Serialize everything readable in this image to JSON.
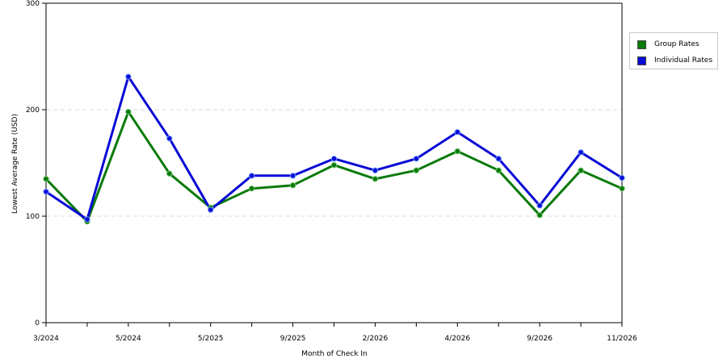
{
  "chart_data": {
    "type": "line",
    "xlabel": "Month of Check In",
    "ylabel": "Lowest Average Rate (USD)",
    "ylim": [
      0,
      300
    ],
    "yticks": [
      0,
      100,
      200,
      300
    ],
    "categories": [
      "3/2024",
      "",
      "5/2024",
      "",
      "5/2025",
      "",
      "9/2025",
      "",
      "2/2026",
      "",
      "4/2026",
      "",
      "9/2026",
      "",
      "11/2026"
    ],
    "grid": "horizontal dashed",
    "legend_position": "right",
    "series": [
      {
        "name": "Group Rates",
        "color": "#0a7a0a",
        "values": [
          135,
          95,
          198,
          140,
          108,
          126,
          129,
          148,
          135,
          143,
          161,
          143,
          101,
          143,
          126
        ]
      },
      {
        "name": "Individual Rates",
        "color": "#0a0ad6",
        "values": [
          123,
          97,
          231,
          173,
          106,
          138,
          138,
          154,
          143,
          154,
          179,
          154,
          110,
          160,
          136
        ]
      }
    ]
  }
}
